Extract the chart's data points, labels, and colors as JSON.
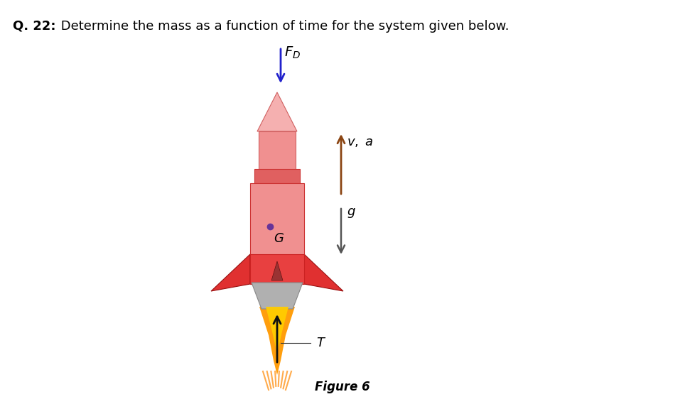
{
  "title_bold": "Q. 22:",
  "title_rest": "  Determine the mass as a function of time for the system given below.",
  "figure_label": "Figure 6",
  "background_color": "#ffffff",
  "rocket_body_color": "#f08080",
  "rocket_body_dark": "#e84040",
  "rocket_nose_tip": "#f5a0a0",
  "rocket_fin_color": "#e03030",
  "rocket_nozzle_color": "#aaaaaa",
  "flame_outer": "#ff9900",
  "flame_inner": "#ffcc00",
  "FD_arrow_color": "#2222cc",
  "va_arrow_color": "#8B4513",
  "g_arrow_color": "#555555",
  "T_arrow_color": "#111111",
  "G_dot_color": "#663399"
}
